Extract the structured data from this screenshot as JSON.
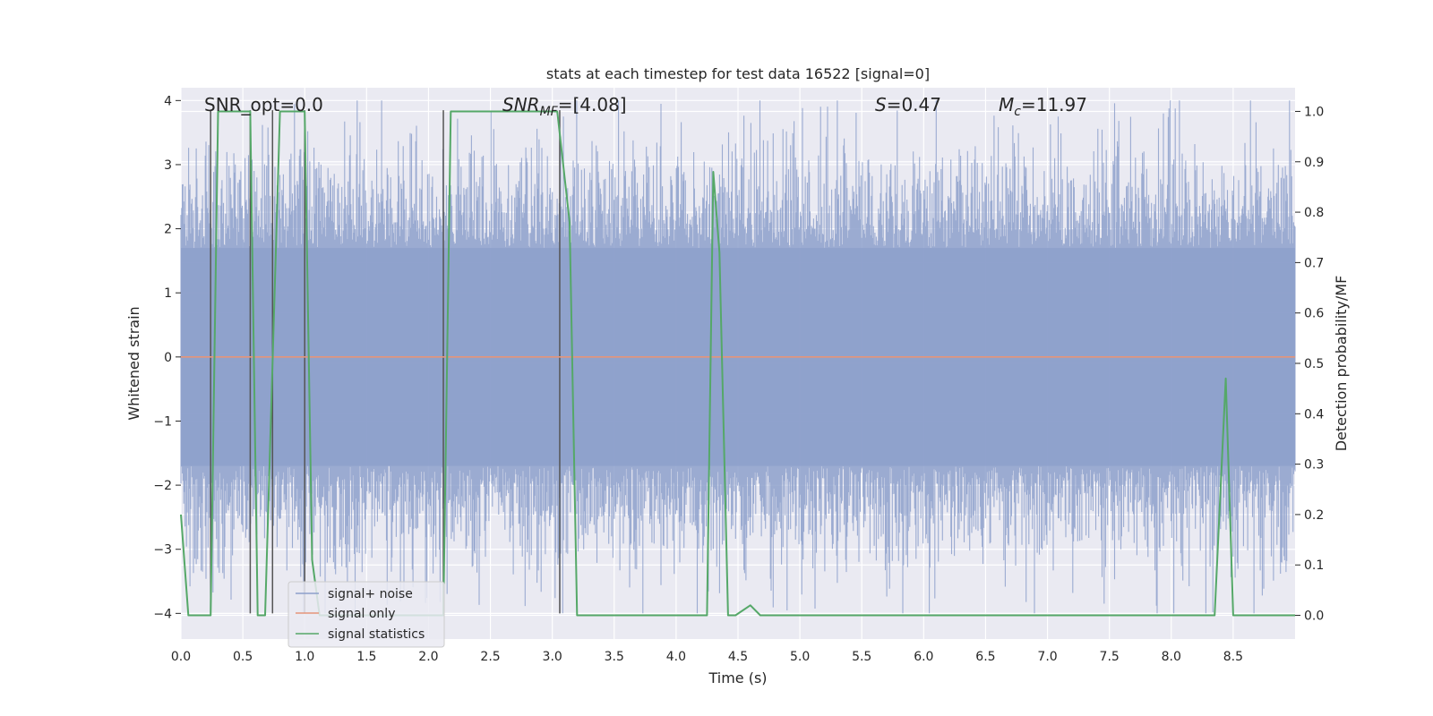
{
  "chart_data": {
    "type": "line",
    "title": "stats at each timestep for test data 16522 [signal=0]",
    "xlabel": "Time (s)",
    "ylabel_left": "Whitened strain",
    "ylabel_right": "Detection probability/MF",
    "xlim": [
      0.0,
      9.0
    ],
    "ylim_left": [
      -4.4,
      4.2
    ],
    "ylim_right": [
      -0.047,
      1.047
    ],
    "grid": true,
    "legend_position": "lower-left",
    "x_ticks": [
      "0.0",
      "0.5",
      "1.0",
      "1.5",
      "2.0",
      "2.5",
      "3.0",
      "3.5",
      "4.0",
      "4.5",
      "5.0",
      "5.5",
      "6.0",
      "6.5",
      "7.0",
      "7.5",
      "8.0",
      "8.5"
    ],
    "y_ticks_left": [
      "4",
      "3",
      "2",
      "1",
      "0",
      "−1",
      "−2",
      "−3",
      "−4"
    ],
    "y_ticks_right": [
      "1.0",
      "0.9",
      "0.8",
      "0.7",
      "0.6",
      "0.5",
      "0.4",
      "0.3",
      "0.2",
      "0.1",
      "0.0"
    ],
    "annotations": {
      "snr_opt": "SNR_opt=0.0",
      "snr_mf_var": "SNR",
      "snr_mf_sub": "MF",
      "snr_mf_val": "=[4.08]",
      "s_var": "S",
      "s_val": "=0.47",
      "mc_var": "M",
      "mc_sub": "c",
      "mc_val": "=11.97"
    },
    "series": [
      {
        "name": "signal+ noise",
        "axis": "left",
        "color": "#8da0cb",
        "noise_envelope": {
          "core_abs": 1.7,
          "typical_peak": 2.6,
          "max_peak": 4.0,
          "min_trough": -4.0
        }
      },
      {
        "name": "signal only",
        "axis": "left",
        "color": "#e5957a",
        "x": [
          0.0,
          9.0
        ],
        "y": [
          0.0,
          0.0
        ]
      },
      {
        "name": "signal statistics",
        "axis": "right",
        "color": "#55a868",
        "x": [
          0.0,
          0.06,
          0.24,
          0.3,
          0.56,
          0.62,
          0.68,
          0.8,
          1.0,
          1.06,
          1.12,
          2.12,
          2.18,
          3.04,
          3.14,
          3.2,
          3.25,
          4.25,
          4.3,
          4.35,
          4.42,
          4.48,
          4.6,
          4.68,
          4.75,
          8.35,
          8.44,
          8.5,
          9.0
        ],
        "y": [
          0.2,
          0.0,
          0.0,
          1.0,
          1.0,
          0.0,
          0.0,
          1.0,
          1.0,
          0.11,
          0.0,
          0.0,
          1.0,
          1.0,
          0.78,
          0.0,
          0.0,
          0.0,
          0.88,
          0.72,
          0.0,
          0.0,
          0.02,
          0.0,
          0.0,
          0.0,
          0.47,
          0.0,
          0.0
        ]
      }
    ],
    "event_markers": {
      "color": "#555555",
      "segments": [
        {
          "x": 0.24,
          "y0": -4.0,
          "y1": 3.85
        },
        {
          "x": 0.56,
          "y0": -4.0,
          "y1": 3.85
        },
        {
          "x": 0.74,
          "y0": -4.0,
          "y1": 3.85
        },
        {
          "x": 1.0,
          "y0": -4.0,
          "y1": 3.85
        },
        {
          "x": 2.12,
          "y0": -4.0,
          "y1": 3.85
        },
        {
          "x": 3.06,
          "y0": -4.0,
          "y1": 3.85
        }
      ]
    }
  }
}
